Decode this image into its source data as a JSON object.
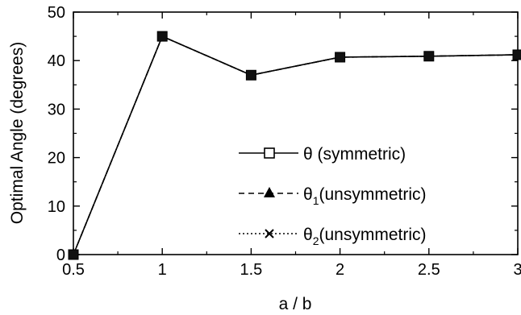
{
  "chart_data": {
    "type": "line",
    "xlabel": "a / b",
    "ylabel": "Optimal Angle (degrees)",
    "xlim": [
      0.5,
      3
    ],
    "ylim": [
      0,
      50
    ],
    "xticks": [
      "0.5",
      "1",
      "1.5",
      "2",
      "2.5",
      "3"
    ],
    "yticks": [
      "0",
      "10",
      "20",
      "30",
      "40",
      "50"
    ],
    "x": [
      0.5,
      1,
      1.5,
      2,
      2.5,
      3
    ],
    "series": [
      {
        "name": "θ  (symmetric)",
        "marker": "open-square",
        "line": "solid",
        "values": [
          0,
          45,
          37,
          40.7,
          40.9,
          41.2
        ]
      },
      {
        "name": "θ1(unsymmetric)",
        "marker": "filled-triangle",
        "line": "dashed",
        "values": [
          0,
          45,
          37,
          40.7,
          40.9,
          41.2
        ]
      },
      {
        "name": "θ2(unsymmetric)",
        "marker": "x",
        "line": "dotted",
        "values": [
          0,
          45,
          37,
          40.7,
          40.9,
          41.2
        ]
      }
    ],
    "grid": false,
    "legend_position": "bottom-right"
  }
}
